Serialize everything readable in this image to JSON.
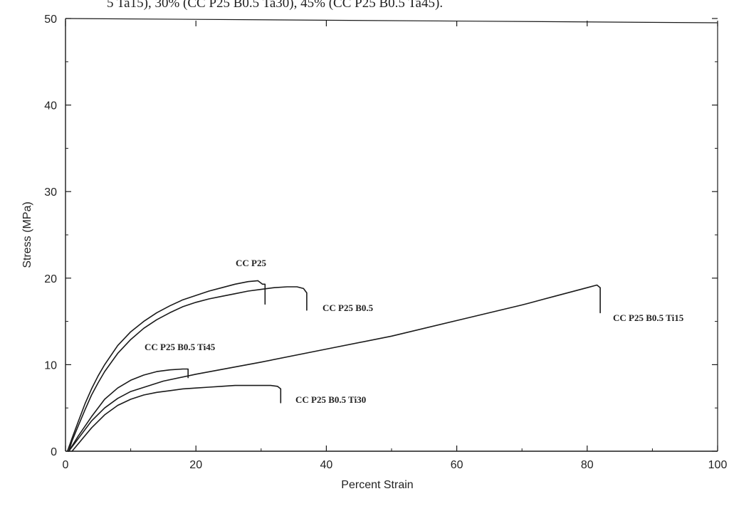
{
  "caption": "5 Ta15), 30% (CC P25 B0.5 Ta30), 45% (CC P25 B0.5 Ta45).",
  "chart_data": {
    "type": "line",
    "title": "",
    "xlabel": "Percent Strain",
    "ylabel": "Stress (MPa)",
    "xlim": [
      0,
      100
    ],
    "ylim": [
      0,
      50
    ],
    "xticks": [
      0,
      20,
      40,
      60,
      80,
      100
    ],
    "yticks": [
      0,
      10,
      20,
      30,
      40,
      50
    ],
    "grid": false,
    "legend": "none",
    "series": [
      {
        "name": "CC P25",
        "x": [
          0.3,
          1,
          2,
          3,
          4,
          5,
          6,
          8,
          10,
          12,
          14,
          16,
          18,
          20,
          22,
          24,
          26,
          28,
          29.5,
          30.2,
          30.6,
          30.6
        ],
        "y": [
          0,
          1.5,
          3.5,
          5.5,
          7.2,
          8.7,
          10.0,
          12.2,
          13.8,
          15.0,
          16.0,
          16.8,
          17.5,
          18.0,
          18.5,
          18.9,
          19.3,
          19.6,
          19.7,
          19.3,
          19.3,
          17.0
        ]
      },
      {
        "name": "CC P25 B0.5",
        "x": [
          0.5,
          1,
          2,
          3,
          4,
          5,
          6,
          8,
          10,
          12,
          14,
          16,
          18,
          20,
          22,
          24,
          26,
          28,
          30,
          32,
          34,
          35.5,
          36.5,
          37,
          37
        ],
        "y": [
          0,
          1.2,
          3.0,
          4.8,
          6.5,
          7.9,
          9.2,
          11.3,
          12.9,
          14.2,
          15.2,
          16.0,
          16.7,
          17.2,
          17.6,
          17.9,
          18.2,
          18.5,
          18.7,
          18.9,
          19.0,
          19.0,
          18.8,
          18.3,
          16.3
        ]
      },
      {
        "name": "CC P25 B0.5 Ti45",
        "x": [
          0.5,
          2,
          4,
          6,
          8,
          10,
          12,
          14,
          16,
          18,
          18.8,
          18.8
        ],
        "y": [
          0,
          1.8,
          4.0,
          6.0,
          7.3,
          8.2,
          8.8,
          9.2,
          9.4,
          9.5,
          9.5,
          8.5
        ]
      },
      {
        "name": "CC P25 B0.5 Ti30",
        "x": [
          1,
          2,
          4,
          6,
          8,
          10,
          12,
          14,
          16,
          18,
          20,
          22,
          24,
          26,
          28,
          30,
          31.5,
          32.5,
          33,
          33
        ],
        "y": [
          0,
          0.9,
          2.7,
          4.2,
          5.3,
          6.0,
          6.5,
          6.8,
          7.0,
          7.2,
          7.3,
          7.4,
          7.5,
          7.6,
          7.6,
          7.6,
          7.6,
          7.5,
          7.2,
          5.6
        ]
      },
      {
        "name": "CC P25 B0.5 Ti15",
        "x": [
          0.5,
          2,
          4,
          6,
          8,
          10,
          15,
          20,
          25,
          30,
          40,
          50,
          60,
          70,
          71,
          75,
          80,
          81.5,
          82,
          82
        ],
        "y": [
          0,
          1.5,
          3.5,
          5.0,
          6.1,
          6.9,
          8.1,
          8.9,
          9.6,
          10.3,
          11.8,
          13.3,
          15.1,
          16.9,
          17.1,
          17.9,
          18.9,
          19.2,
          18.9,
          16.0
        ]
      }
    ]
  }
}
